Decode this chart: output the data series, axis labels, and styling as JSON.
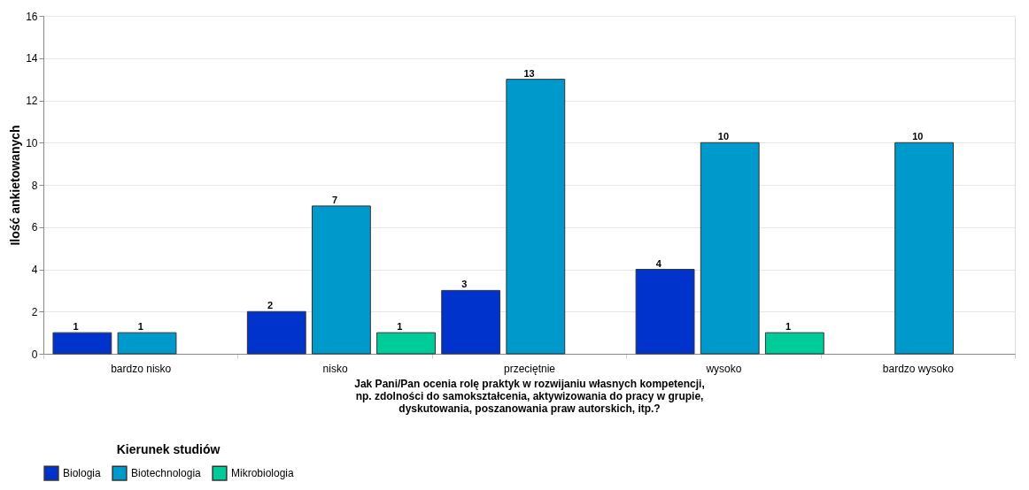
{
  "chart_data": {
    "type": "bar",
    "xlabel": "Jak Pani/Pan ocenia rolę praktyk w rozwijaniu własnych kompetencji,\nnp. zdolności do samokształcenia, aktywizowania do pracy w grupie,\ndyskutowania, poszanowania praw autorskich, itp.?",
    "ylabel": "Ilość ankietowanych",
    "legend_title": "Kierunek studiów",
    "categories": [
      "bardzo nisko",
      "nisko",
      "przeciętnie",
      "wysoko",
      "bardzo wysoko"
    ],
    "series": [
      {
        "name": "Biologia",
        "color": "#0033cc",
        "values": [
          1,
          2,
          3,
          4,
          null
        ]
      },
      {
        "name": "Biotechnologia",
        "color": "#0099cc",
        "values": [
          1,
          7,
          13,
          10,
          10
        ]
      },
      {
        "name": "Mikrobiologia",
        "color": "#00cc99",
        "values": [
          null,
          1,
          null,
          1,
          null
        ]
      }
    ],
    "ylim": [
      0,
      16
    ],
    "yticks": [
      0,
      2,
      4,
      6,
      8,
      10,
      12,
      14,
      16
    ],
    "grid": "y",
    "legend": "bottom",
    "data_labels": true
  }
}
